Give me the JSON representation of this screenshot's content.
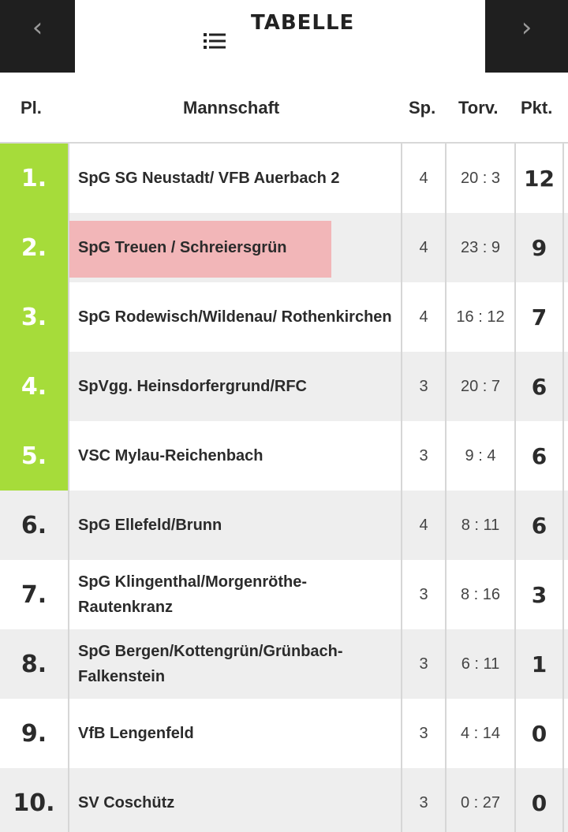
{
  "header": {
    "title": "TABELLE",
    "prev_icon": "‹",
    "next_icon": "›"
  },
  "columns": {
    "pl": "Pl.",
    "team": "Mannschaft",
    "sp": "Sp.",
    "torv": "Torv.",
    "pkt": "Pkt."
  },
  "colors": {
    "promotion": "#a6dc3a",
    "highlight": "#f2b6b8",
    "nav_bg": "#1f1f1f"
  },
  "rows": [
    {
      "pl": "1.",
      "team": "SpG SG Neustadt/ VFB Auerbach 2",
      "sp": "4",
      "torv": "20 : 3",
      "pkt": "12"
    },
    {
      "pl": "2.",
      "team": "SpG Treuen / Schreiersgrün",
      "sp": "4",
      "torv": "23 : 9",
      "pkt": "9"
    },
    {
      "pl": "3.",
      "team": "SpG Rodewisch/Wildenau/ Rothenkirchen",
      "sp": "4",
      "torv": "16 : 12",
      "pkt": "7"
    },
    {
      "pl": "4.",
      "team": "SpVgg. Heinsdorfergrund/RFC",
      "sp": "3",
      "torv": "20 : 7",
      "pkt": "6"
    },
    {
      "pl": "5.",
      "team": "VSC Mylau-Reichenbach",
      "sp": "3",
      "torv": "9 : 4",
      "pkt": "6"
    },
    {
      "pl": "6.",
      "team": "SpG Ellefeld/Brunn",
      "sp": "4",
      "torv": "8 : 11",
      "pkt": "6"
    },
    {
      "pl": "7.",
      "team": "SpG Klingenthal/Morgenröthe-Rautenkranz",
      "sp": "3",
      "torv": "8 : 16",
      "pkt": "3"
    },
    {
      "pl": "8.",
      "team": "SpG Bergen/Kottengrün/Grünbach-Falkenstein",
      "sp": "3",
      "torv": "6 : 11",
      "pkt": "1"
    },
    {
      "pl": "9.",
      "team": "VfB Lengenfeld",
      "sp": "3",
      "torv": "4 : 14",
      "pkt": "0"
    },
    {
      "pl": "10.",
      "team": "SV Coschütz",
      "sp": "3",
      "torv": "0 : 27",
      "pkt": "0"
    }
  ]
}
